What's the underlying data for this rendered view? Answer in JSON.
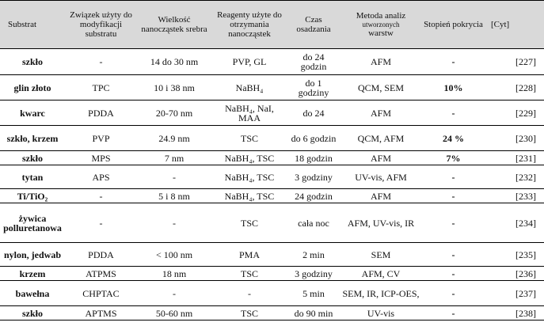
{
  "table": {
    "headers": {
      "substrat": "Substrat",
      "zwiazek": "Związek użyty do modyfikacji substratu",
      "wielkosc": "Wielkość nanocząstek srebra",
      "reagenty": "Reagenty użyte do otrzymania nanocząstek",
      "czas": "Czas osadzania",
      "metoda_l1": "Metoda analiz",
      "metoda_l2": "utworzonych",
      "metoda_l3": "warstw",
      "stopien": "Stopień pokrycia",
      "cyt": "[Cyt]"
    },
    "rows": [
      {
        "substrat": "szkło",
        "zwiazek": "-",
        "wielkosc": "14 do 30 nm",
        "reagenty": "PVP, GL",
        "czas": "do 24 godzin",
        "metoda": "AFM",
        "stopien": "-",
        "cyt": "[227]"
      },
      {
        "substrat": "glin złoto",
        "zwiazek": "TPC",
        "wielkosc": "10 i 38 nm",
        "reagenty": "NaBH₄",
        "czas": "do 1 godziny",
        "metoda": "QCM, SEM",
        "stopien": "10%",
        "cyt": "[228]"
      },
      {
        "substrat": "kwarc",
        "zwiazek": "PDDA",
        "wielkosc": "20-70 nm",
        "reagenty": "NaBH₄, NaI, MAA",
        "czas": "do 24",
        "metoda": "AFM",
        "stopien": "-",
        "cyt": "[229]"
      },
      {
        "substrat": "szkło, krzem",
        "zwiazek": "PVP",
        "wielkosc": "24.9 nm",
        "reagenty": "TSC",
        "czas": "do 6 godzin",
        "metoda": "QCM, AFM",
        "stopien": "24 %",
        "cyt": "[230]"
      },
      {
        "substrat": "szkło",
        "zwiazek": "MPS",
        "wielkosc": "7 nm",
        "reagenty": "NaBH₄, TSC",
        "czas": "18 godzin",
        "metoda": "AFM",
        "stopien": "7%",
        "cyt": "[231]"
      },
      {
        "substrat": "tytan",
        "zwiazek": "APS",
        "wielkosc": "-",
        "reagenty": "NaBH₄, TSC",
        "czas": "3 godziny",
        "metoda": "UV-vis, AFM",
        "stopien": "-",
        "cyt": "[232]"
      },
      {
        "substrat": "Ti/TiO₂",
        "zwiazek": "-",
        "wielkosc": "5 i 8 nm",
        "reagenty": "NaBH₄, TSC",
        "czas": "24 godzin",
        "metoda": "AFM",
        "stopien": "-",
        "cyt": "[233]"
      },
      {
        "substrat": "żywica polluretanowa",
        "zwiazek": "-",
        "wielkosc": "-",
        "reagenty": "TSC",
        "czas": "cała noc",
        "metoda": "AFM, UV-vis, IR",
        "stopien": "-",
        "cyt": "[234]"
      },
      {
        "substrat": "nylon, jedwab",
        "zwiazek": "PDDA",
        "wielkosc": "< 100 nm",
        "reagenty": "PMA",
        "czas": "2 min",
        "metoda": "SEM",
        "stopien": "-",
        "cyt": "[235]"
      },
      {
        "substrat": "krzem",
        "zwiazek": "ATPMS",
        "wielkosc": "18 nm",
        "reagenty": "TSC",
        "czas": "3 godziny",
        "metoda": "AFM, CV",
        "stopien": "-",
        "cyt": "[236]"
      },
      {
        "substrat": "bawełna",
        "zwiazek": "CHPTAC",
        "wielkosc": "-",
        "reagenty": "-",
        "czas": "5 min",
        "metoda": "SEM, IR, ICP-OES,",
        "stopien": "-",
        "cyt": "[237]"
      },
      {
        "substrat": "szkło",
        "zwiazek": "APTMS",
        "wielkosc": "50-60 nm",
        "reagenty": "TSC",
        "czas": "do 90 min",
        "metoda": "UV-vis",
        "stopien": "-",
        "cyt": "[238]"
      }
    ]
  }
}
